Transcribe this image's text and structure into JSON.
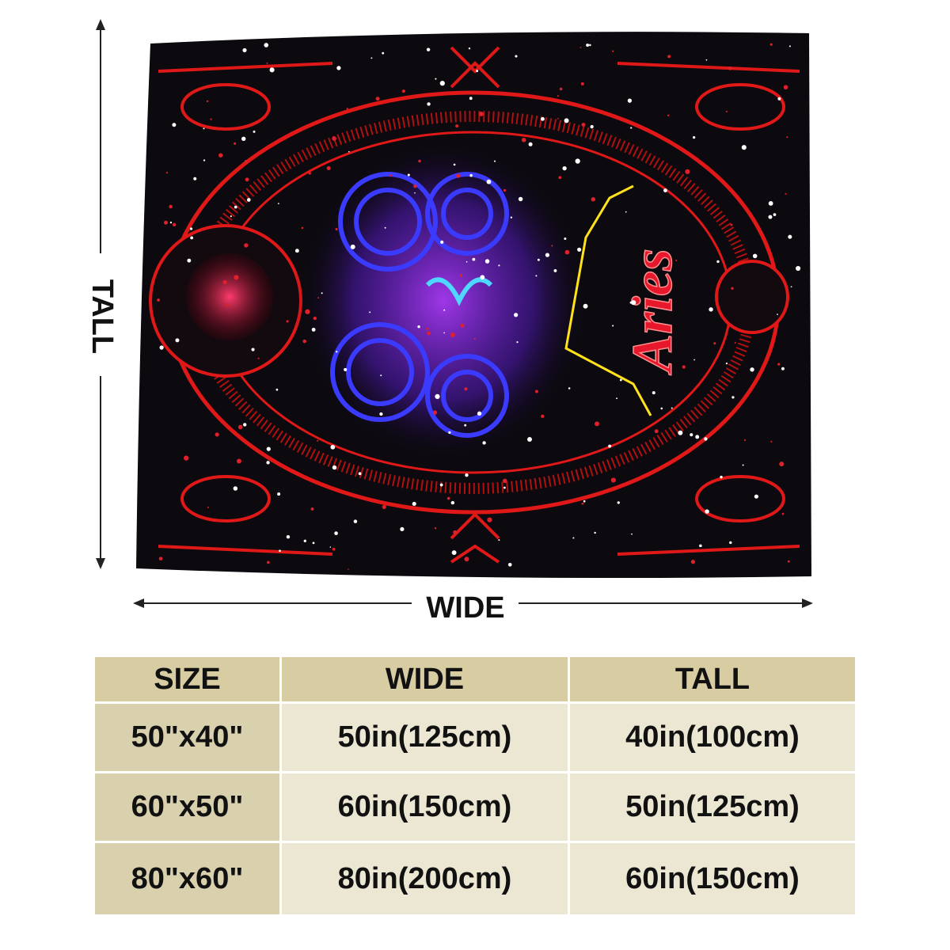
{
  "artwork": {
    "title": "Aries"
  },
  "dimensions": {
    "tall": "TALL",
    "wide": "WIDE"
  },
  "table": {
    "header": [
      "SIZE",
      "WIDE",
      "TALL"
    ],
    "rows": [
      [
        "50\"x40\"",
        "50in(125cm)",
        "40in(100cm)"
      ],
      [
        "60\"x50\"",
        "60in(150cm)",
        "50in(125cm)"
      ],
      [
        "80\"x60\"",
        "80in(200cm)",
        "60in(150cm)"
      ]
    ]
  }
}
